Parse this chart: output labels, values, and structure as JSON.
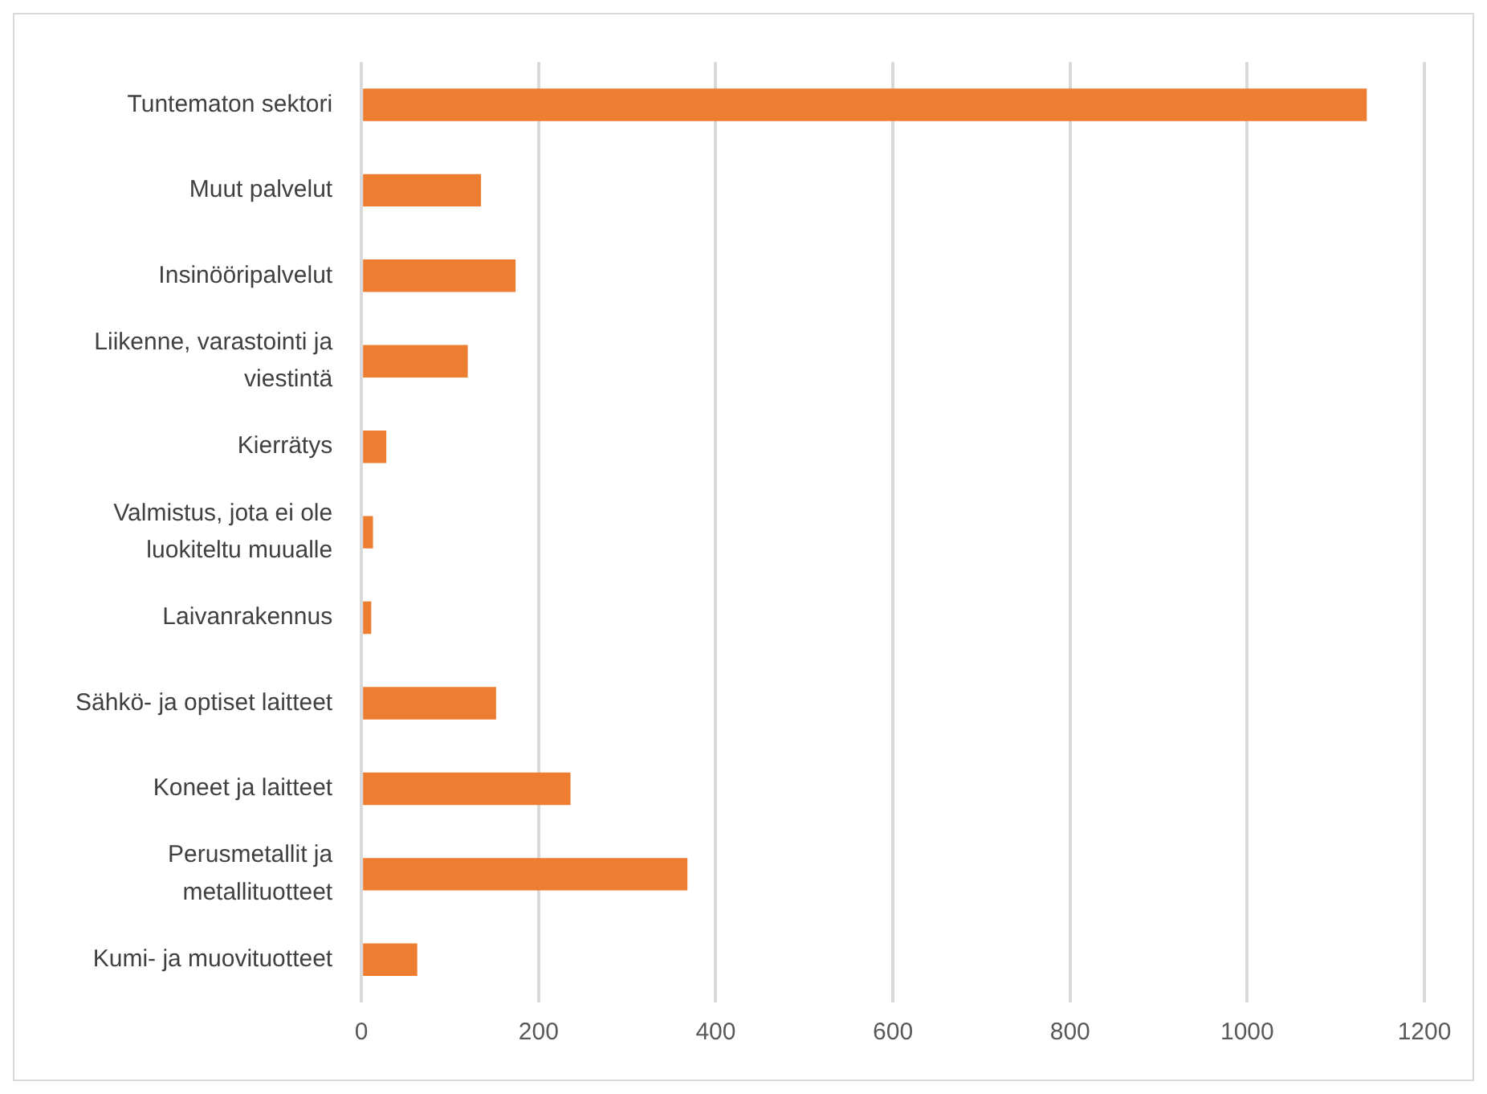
{
  "chart_data": {
    "type": "bar",
    "orientation": "horizontal",
    "categories": [
      "Tuntematon sektori",
      "Muut palvelut",
      "Insinööripalvelut",
      "Liikenne, varastointi ja viestintä",
      "Kierrätys",
      "Valmistus, jota ei ole luokiteltu muualle",
      "Laivanrakennus",
      "Sähkö- ja optiset laitteet",
      "Koneet ja laitteet",
      "Perusmetallit ja metallituotteet",
      "Kumi- ja muovituotteet"
    ],
    "values": [
      1135,
      135,
      174,
      120,
      28,
      13,
      11,
      152,
      236,
      368,
      63
    ],
    "color": "#ed7d31",
    "xlim": [
      0,
      1200
    ],
    "xticks": [
      0,
      200,
      400,
      600,
      800,
      1000,
      1200
    ],
    "grid": "x"
  }
}
